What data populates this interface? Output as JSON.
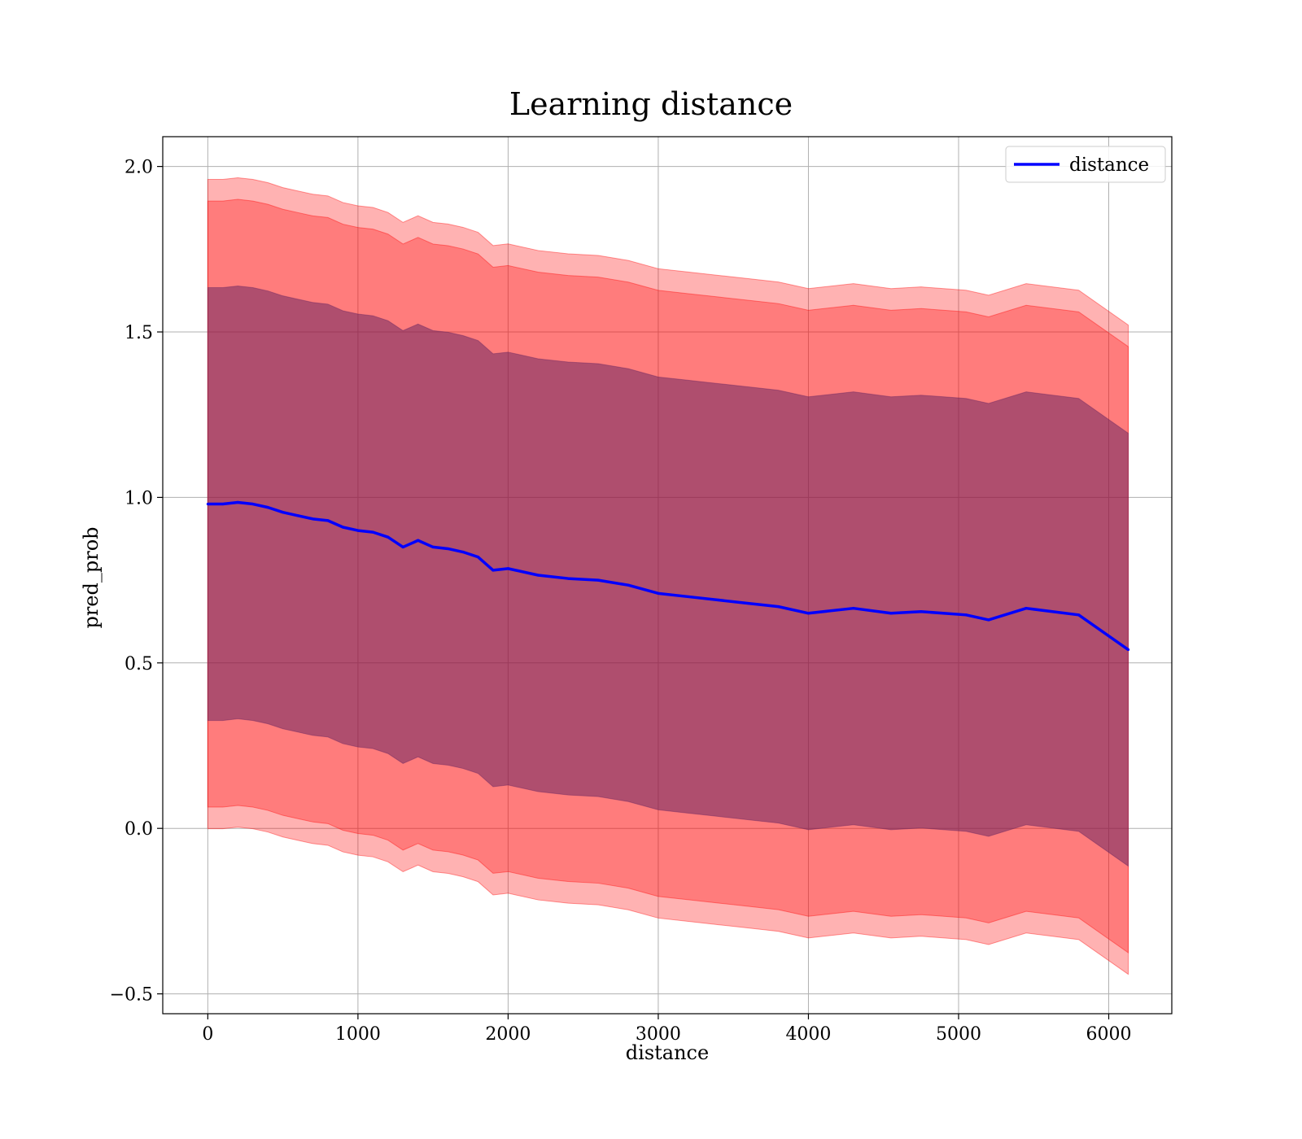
{
  "chart_data": {
    "type": "line",
    "title": "Learning distance",
    "xlabel": "distance",
    "ylabel": "pred_prob",
    "xlim": [
      -300,
      6420
    ],
    "ylim": [
      -0.56,
      2.09
    ],
    "xticks": [
      0,
      1000,
      2000,
      3000,
      4000,
      5000,
      6000
    ],
    "yticks": [
      -0.5,
      0.0,
      0.5,
      1.0,
      1.5,
      2.0
    ],
    "xtick_labels": [
      "0",
      "1000",
      "2000",
      "3000",
      "4000",
      "5000",
      "6000"
    ],
    "ytick_labels": [
      "−0.5",
      "0.0",
      "0.5",
      "1.0",
      "1.5",
      "2.0"
    ],
    "grid": true,
    "legend": {
      "position": "top-right",
      "entries": [
        "distance"
      ]
    },
    "colors": {
      "line": "#0000ff",
      "band": "#ff0000",
      "band_dark": "#602060",
      "grid": "#b0b0b0"
    },
    "series": [
      {
        "name": "distance",
        "x": [
          0,
          100,
          200,
          300,
          400,
          500,
          600,
          700,
          800,
          900,
          1000,
          1100,
          1200,
          1300,
          1400,
          1500,
          1600,
          1700,
          1800,
          1900,
          2000,
          2200,
          2400,
          2600,
          2800,
          3000,
          3200,
          3400,
          3600,
          3800,
          4000,
          4300,
          4550,
          4750,
          5050,
          5200,
          5450,
          5800,
          6130
        ],
        "y": [
          0.98,
          0.98,
          0.985,
          0.98,
          0.97,
          0.955,
          0.945,
          0.935,
          0.93,
          0.91,
          0.9,
          0.895,
          0.88,
          0.85,
          0.87,
          0.85,
          0.845,
          0.835,
          0.82,
          0.78,
          0.785,
          0.765,
          0.755,
          0.75,
          0.735,
          0.71,
          0.7,
          0.69,
          0.68,
          0.67,
          0.65,
          0.665,
          0.65,
          0.655,
          0.645,
          0.63,
          0.665,
          0.645,
          0.54
        ],
        "bands": [
          {
            "sigma": 3,
            "opacity": 0.3
          },
          {
            "sigma": 2.8,
            "opacity": 0.3
          },
          {
            "sigma": 2,
            "opacity": 0.5
          }
        ],
        "sigma_unit": 0.327
      }
    ]
  }
}
